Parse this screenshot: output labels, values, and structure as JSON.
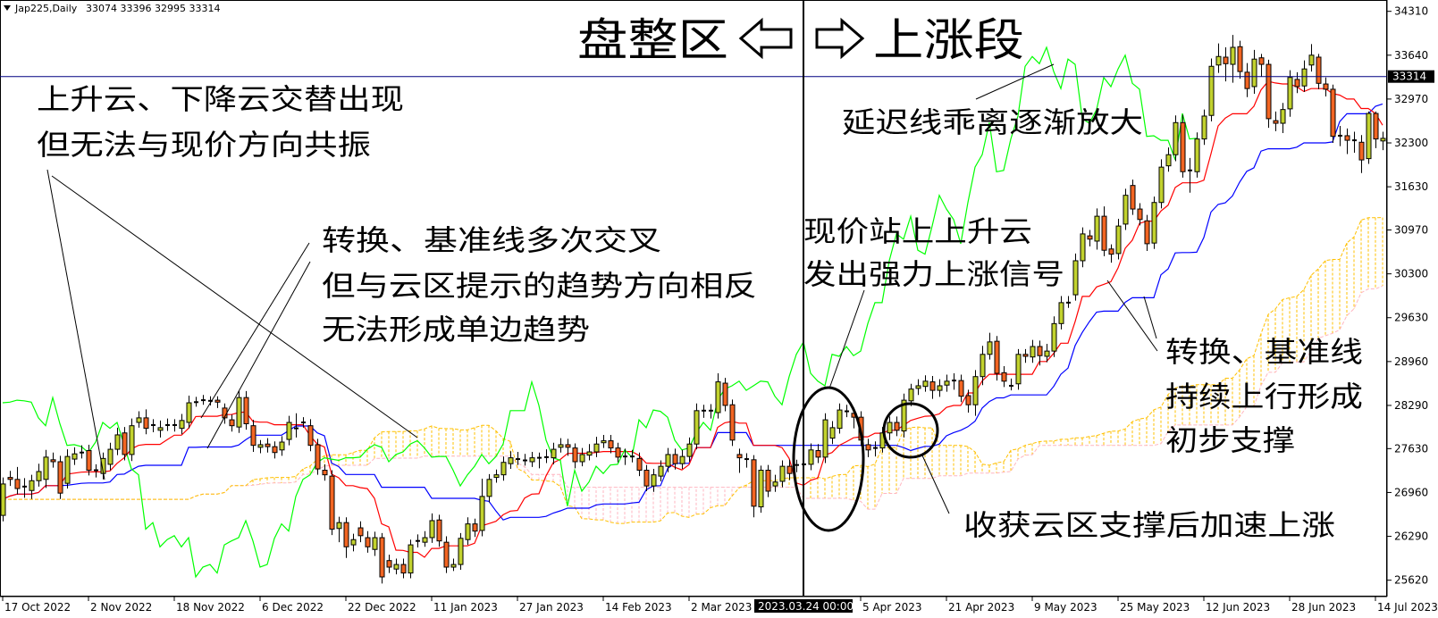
{
  "header": {
    "symbol_timeframe": "Jap225,Daily",
    "ohlc_text": "33074 33396 32995 33314",
    "menu_icon": "triangle-down-icon"
  },
  "title": {
    "left": "盘整区",
    "right": "上涨段",
    "left_arrow": "hollow-left-arrow-icon",
    "right_arrow": "hollow-right-arrow-icon"
  },
  "annotations": {
    "cloud_alternating": [
      "上升云、下降云交替出现",
      "但无法与现价方向共振"
    ],
    "lines_crossing": [
      "转换、基准线多次交叉",
      "但与云区提示的趋势方向相反",
      "无法形成单边趋势"
    ],
    "price_above_cloud": [
      "现价站上上升云",
      "发出强力上涨信号"
    ],
    "lagging_span": "延迟线乖离逐渐放大",
    "lines_rising": [
      "转换、基准线",
      "持续上行形成",
      "初步支撑"
    ],
    "cloud_support": "收获云区支撑后加速上涨"
  },
  "chart_data": {
    "type": "candlestick",
    "title": "Jap225,Daily",
    "indicator": "Ichimoku Kinko Hyo",
    "ylim": [
      25370,
      34483
    ],
    "y_ticks": [
      34310,
      33640,
      32970,
      32300,
      31630,
      30970,
      30300,
      29630,
      28960,
      28290,
      27630,
      26960,
      26290,
      25620
    ],
    "x_ticks": [
      {
        "bar": 0,
        "label": "17 Oct 2022"
      },
      {
        "bar": 12,
        "label": "2 Nov 2022"
      },
      {
        "bar": 24,
        "label": "18 Nov 2022"
      },
      {
        "bar": 36,
        "label": "6 Dec 2022"
      },
      {
        "bar": 48,
        "label": "22 Dec 2022"
      },
      {
        "bar": 60,
        "label": "11 Jan 2023"
      },
      {
        "bar": 72,
        "label": "27 Jan 2023"
      },
      {
        "bar": 84,
        "label": "14 Feb 2023"
      },
      {
        "bar": 96,
        "label": "2 Mar 2023"
      },
      {
        "bar": 120,
        "label": "5 Apr 2023"
      },
      {
        "bar": 132,
        "label": "21 Apr 2023"
      },
      {
        "bar": 144,
        "label": "9 May 2023"
      },
      {
        "bar": 156,
        "label": "25 May 2023"
      },
      {
        "bar": 168,
        "label": "12 Jun 2023"
      },
      {
        "bar": 180,
        "label": "28 Jun 2023"
      },
      {
        "bar": 192,
        "label": "14 Jul 2023"
      }
    ],
    "crosshair": {
      "bar": 112,
      "label": "2023.03.24 00:00"
    },
    "bid": {
      "price": 33314,
      "label": "33314"
    },
    "colors": {
      "bull": "#C2D22E",
      "bear": "#F26522",
      "tenkan": "#FF0000",
      "kijun": "#0000FF",
      "chikou": "#00FF00",
      "span_a": "#FFC000",
      "span_b": "#FFB6C1",
      "bid_line": "#000080"
    },
    "ohlc": [
      [
        26610,
        27190,
        26520,
        27090
      ],
      [
        27190,
        27290,
        27060,
        27160
      ],
      [
        27160,
        27350,
        26930,
        27020
      ],
      [
        27050,
        27180,
        26880,
        27040
      ],
      [
        26990,
        27230,
        26860,
        27140
      ],
      [
        27140,
        27400,
        27050,
        27280
      ],
      [
        27160,
        27610,
        27030,
        27500
      ],
      [
        27460,
        27570,
        27340,
        27430
      ],
      [
        27430,
        27520,
        26860,
        26950
      ],
      [
        27100,
        27620,
        27020,
        27510
      ],
      [
        27470,
        27650,
        27380,
        27550
      ],
      [
        27570,
        27680,
        27480,
        27570
      ],
      [
        27600,
        27690,
        27220,
        27300
      ],
      [
        27300,
        27390,
        27190,
        27300
      ],
      [
        27250,
        27570,
        27160,
        27480
      ],
      [
        27390,
        27720,
        27300,
        27620
      ],
      [
        27620,
        27950,
        27530,
        27840
      ],
      [
        27870,
        27960,
        27450,
        27540
      ],
      [
        27540,
        28090,
        27440,
        27980
      ],
      [
        28030,
        28200,
        27950,
        28100
      ],
      [
        28100,
        28230,
        27850,
        27940
      ],
      [
        27990,
        28080,
        27880,
        27980
      ],
      [
        27910,
        28060,
        27800,
        27950
      ],
      [
        27990,
        28090,
        27900,
        27990
      ],
      [
        27990,
        28080,
        27890,
        27990
      ],
      [
        27940,
        28160,
        27850,
        28060
      ],
      [
        28030,
        28440,
        27940,
        28330
      ],
      [
        28340,
        28420,
        28270,
        28340
      ],
      [
        28370,
        28450,
        28300,
        28370
      ],
      [
        28360,
        28430,
        28290,
        28360
      ],
      [
        28370,
        28430,
        28250,
        28340
      ],
      [
        28250,
        28320,
        28010,
        28100
      ],
      [
        28070,
        28150,
        27890,
        27980
      ],
      [
        27960,
        28510,
        27870,
        28410
      ],
      [
        28410,
        28510,
        27920,
        28010
      ],
      [
        27980,
        28070,
        27580,
        27680
      ],
      [
        27650,
        27760,
        27560,
        27690
      ],
      [
        27700,
        27790,
        27570,
        27660
      ],
      [
        27660,
        27740,
        27480,
        27570
      ],
      [
        27610,
        27820,
        27520,
        27730
      ],
      [
        27770,
        28130,
        27680,
        28030
      ],
      [
        27940,
        28170,
        27800,
        27940
      ],
      [
        28030,
        28110,
        27950,
        28030
      ],
      [
        27980,
        28080,
        27590,
        27680
      ],
      [
        27690,
        27780,
        27230,
        27320
      ],
      [
        27300,
        27390,
        27140,
        27230
      ],
      [
        27210,
        27300,
        26310,
        26400
      ],
      [
        26410,
        26590,
        26200,
        26500
      ],
      [
        26500,
        26580,
        25960,
        26130
      ],
      [
        26160,
        26330,
        26060,
        26240
      ],
      [
        26420,
        26520,
        26200,
        26300
      ],
      [
        26270,
        26370,
        26040,
        26130
      ],
      [
        26090,
        26360,
        25990,
        26270
      ],
      [
        26270,
        26340,
        25570,
        25670
      ],
      [
        25920,
        26010,
        25730,
        25820
      ],
      [
        25790,
        25950,
        25710,
        25860
      ],
      [
        25860,
        25950,
        25650,
        25730
      ],
      [
        25730,
        26240,
        25650,
        26160
      ],
      [
        26220,
        26320,
        26120,
        26220
      ],
      [
        26200,
        26370,
        26130,
        26270
      ],
      [
        26270,
        26640,
        26190,
        26530
      ],
      [
        26540,
        26620,
        26130,
        26220
      ],
      [
        26200,
        26290,
        25730,
        25820
      ],
      [
        25820,
        25950,
        25760,
        25860
      ],
      [
        25860,
        26340,
        25780,
        26260
      ],
      [
        26240,
        26580,
        26160,
        26480
      ],
      [
        26480,
        26560,
        26280,
        26370
      ],
      [
        26380,
        27170,
        26290,
        26900
      ],
      [
        26900,
        27240,
        26810,
        27160
      ],
      [
        27190,
        27310,
        27110,
        27230
      ],
      [
        27230,
        27510,
        27140,
        27420
      ],
      [
        27400,
        27590,
        27320,
        27490
      ],
      [
        27470,
        27580,
        27380,
        27470
      ],
      [
        27450,
        27550,
        27370,
        27450
      ],
      [
        27430,
        27580,
        27350,
        27490
      ],
      [
        27490,
        27570,
        27330,
        27490
      ],
      [
        27500,
        27620,
        27410,
        27500
      ],
      [
        27490,
        27720,
        27390,
        27620
      ],
      [
        27650,
        27790,
        27570,
        27690
      ],
      [
        27690,
        27780,
        27520,
        27650
      ],
      [
        27640,
        27710,
        27330,
        27430
      ],
      [
        27430,
        27640,
        27360,
        27540
      ],
      [
        27530,
        27700,
        27450,
        27580
      ],
      [
        27580,
        27810,
        27500,
        27700
      ],
      [
        27720,
        27840,
        27640,
        27750
      ],
      [
        27750,
        27840,
        27560,
        27640
      ],
      [
        27640,
        27720,
        27420,
        27500
      ],
      [
        27510,
        27630,
        27380,
        27510
      ],
      [
        27510,
        27610,
        27420,
        27510
      ],
      [
        27480,
        27570,
        27210,
        27300
      ],
      [
        27300,
        27380,
        26980,
        27060
      ],
      [
        27060,
        27320,
        26970,
        27230
      ],
      [
        27210,
        27450,
        27130,
        27360
      ],
      [
        27360,
        27640,
        27270,
        27540
      ],
      [
        27540,
        27630,
        27310,
        27400
      ],
      [
        27400,
        27610,
        27320,
        27510
      ],
      [
        27510,
        27800,
        27430,
        27700
      ],
      [
        27700,
        28320,
        27620,
        28210
      ],
      [
        28210,
        28300,
        28100,
        28210
      ],
      [
        28210,
        28310,
        28090,
        28210
      ],
      [
        28180,
        28780,
        28090,
        28650
      ],
      [
        28630,
        28710,
        28200,
        28290
      ],
      [
        28300,
        28380,
        27670,
        27760
      ],
      [
        27540,
        27630,
        27260,
        27490
      ],
      [
        27470,
        27560,
        27340,
        27450
      ],
      [
        27460,
        27530,
        26580,
        26750
      ],
      [
        26740,
        27370,
        26650,
        27300
      ],
      [
        27300,
        27380,
        26890,
        26980
      ],
      [
        27060,
        27230,
        26970,
        27120
      ],
      [
        27130,
        27450,
        27040,
        27360
      ],
      [
        27360,
        27460,
        27150,
        27250
      ],
      [
        27380,
        27460,
        27270,
        27380
      ],
      [
        27390,
        27480,
        27310,
        27390
      ],
      [
        27390,
        27710,
        27300,
        27610
      ],
      [
        27600,
        27700,
        27410,
        27500
      ],
      [
        27500,
        28170,
        27410,
        28070
      ],
      [
        27790,
        28050,
        27700,
        27950
      ],
      [
        27940,
        28320,
        27860,
        28220
      ],
      [
        28200,
        28300,
        28110,
        28200
      ],
      [
        28170,
        28250,
        27940,
        28110
      ],
      [
        28110,
        28200,
        27670,
        27760
      ],
      [
        27690,
        27780,
        27500,
        27610
      ],
      [
        27640,
        27740,
        27510,
        27640
      ],
      [
        27640,
        27960,
        27570,
        27870
      ],
      [
        27870,
        28120,
        27760,
        28030
      ],
      [
        28030,
        28120,
        27820,
        27910
      ],
      [
        27900,
        28470,
        27800,
        28370
      ],
      [
        28360,
        28620,
        28280,
        28540
      ],
      [
        28550,
        28690,
        28450,
        28590
      ],
      [
        28580,
        28750,
        28500,
        28660
      ],
      [
        28650,
        28740,
        28390,
        28520
      ],
      [
        28520,
        28690,
        28420,
        28590
      ],
      [
        28600,
        28760,
        28500,
        28660
      ],
      [
        28670,
        28780,
        28530,
        28650
      ],
      [
        28670,
        28760,
        28340,
        28430
      ],
      [
        28440,
        28530,
        28180,
        28300
      ],
      [
        28300,
        28830,
        28130,
        28730
      ],
      [
        28730,
        29200,
        28600,
        29070
      ],
      [
        29070,
        29400,
        28990,
        29260
      ],
      [
        29270,
        29350,
        28670,
        28780
      ],
      [
        28790,
        28890,
        28570,
        28660
      ],
      [
        28590,
        28700,
        28520,
        28590
      ],
      [
        28620,
        29150,
        28530,
        29070
      ],
      [
        29070,
        29150,
        28940,
        29040
      ],
      [
        29030,
        29290,
        28940,
        29190
      ],
      [
        29190,
        29280,
        28900,
        29050
      ],
      [
        29040,
        29230,
        28950,
        29120
      ],
      [
        29120,
        29650,
        29030,
        29540
      ],
      [
        29540,
        29960,
        29450,
        29860
      ],
      [
        29860,
        29960,
        29780,
        29860
      ],
      [
        29980,
        30610,
        29890,
        30500
      ],
      [
        30500,
        31010,
        30400,
        30910
      ],
      [
        30880,
        30970,
        30720,
        30830
      ],
      [
        30800,
        31300,
        30670,
        31180
      ],
      [
        31180,
        31330,
        30570,
        30660
      ],
      [
        30680,
        30750,
        30470,
        30600
      ],
      [
        30610,
        31140,
        30520,
        31030
      ],
      [
        31060,
        31600,
        30970,
        31500
      ],
      [
        31650,
        31740,
        31200,
        31290
      ],
      [
        31290,
        31380,
        31040,
        31130
      ],
      [
        31110,
        31200,
        30650,
        30760
      ],
      [
        30770,
        31480,
        30680,
        31390
      ],
      [
        31390,
        32050,
        31300,
        31930
      ],
      [
        31950,
        32230,
        31860,
        32120
      ],
      [
        32120,
        32720,
        32020,
        32610
      ],
      [
        32610,
        32730,
        31770,
        31860
      ],
      [
        31880,
        32070,
        31540,
        31880
      ],
      [
        31860,
        32460,
        31770,
        32360
      ],
      [
        32360,
        32810,
        32270,
        32710
      ],
      [
        32720,
        33590,
        32630,
        33470
      ],
      [
        33490,
        33820,
        33370,
        33620
      ],
      [
        33610,
        33760,
        33240,
        33510
      ],
      [
        33500,
        33950,
        33220,
        33760
      ],
      [
        33770,
        33860,
        33280,
        33390
      ],
      [
        33380,
        33520,
        33000,
        33130
      ],
      [
        33160,
        33720,
        33050,
        33580
      ],
      [
        33600,
        33660,
        33310,
        33500
      ],
      [
        33500,
        33570,
        32530,
        32670
      ],
      [
        32640,
        32780,
        32480,
        32600
      ],
      [
        32600,
        32910,
        32450,
        32810
      ],
      [
        32820,
        33410,
        32700,
        33300
      ],
      [
        33270,
        33380,
        33060,
        33160
      ],
      [
        33170,
        33560,
        33080,
        33430
      ],
      [
        33490,
        33810,
        33390,
        33640
      ],
      [
        33610,
        33660,
        33120,
        33210
      ],
      [
        33200,
        33300,
        33010,
        33120
      ],
      [
        33120,
        33190,
        32300,
        32400
      ],
      [
        32410,
        32560,
        32250,
        32410
      ],
      [
        32410,
        32520,
        32130,
        32340
      ],
      [
        32340,
        32470,
        32150,
        32340
      ],
      [
        32310,
        32420,
        31840,
        32040
      ],
      [
        32060,
        32780,
        31980,
        32750
      ],
      [
        32750,
        32780,
        32220,
        32360
      ],
      [
        32330,
        32470,
        32190,
        32370
      ]
    ]
  }
}
